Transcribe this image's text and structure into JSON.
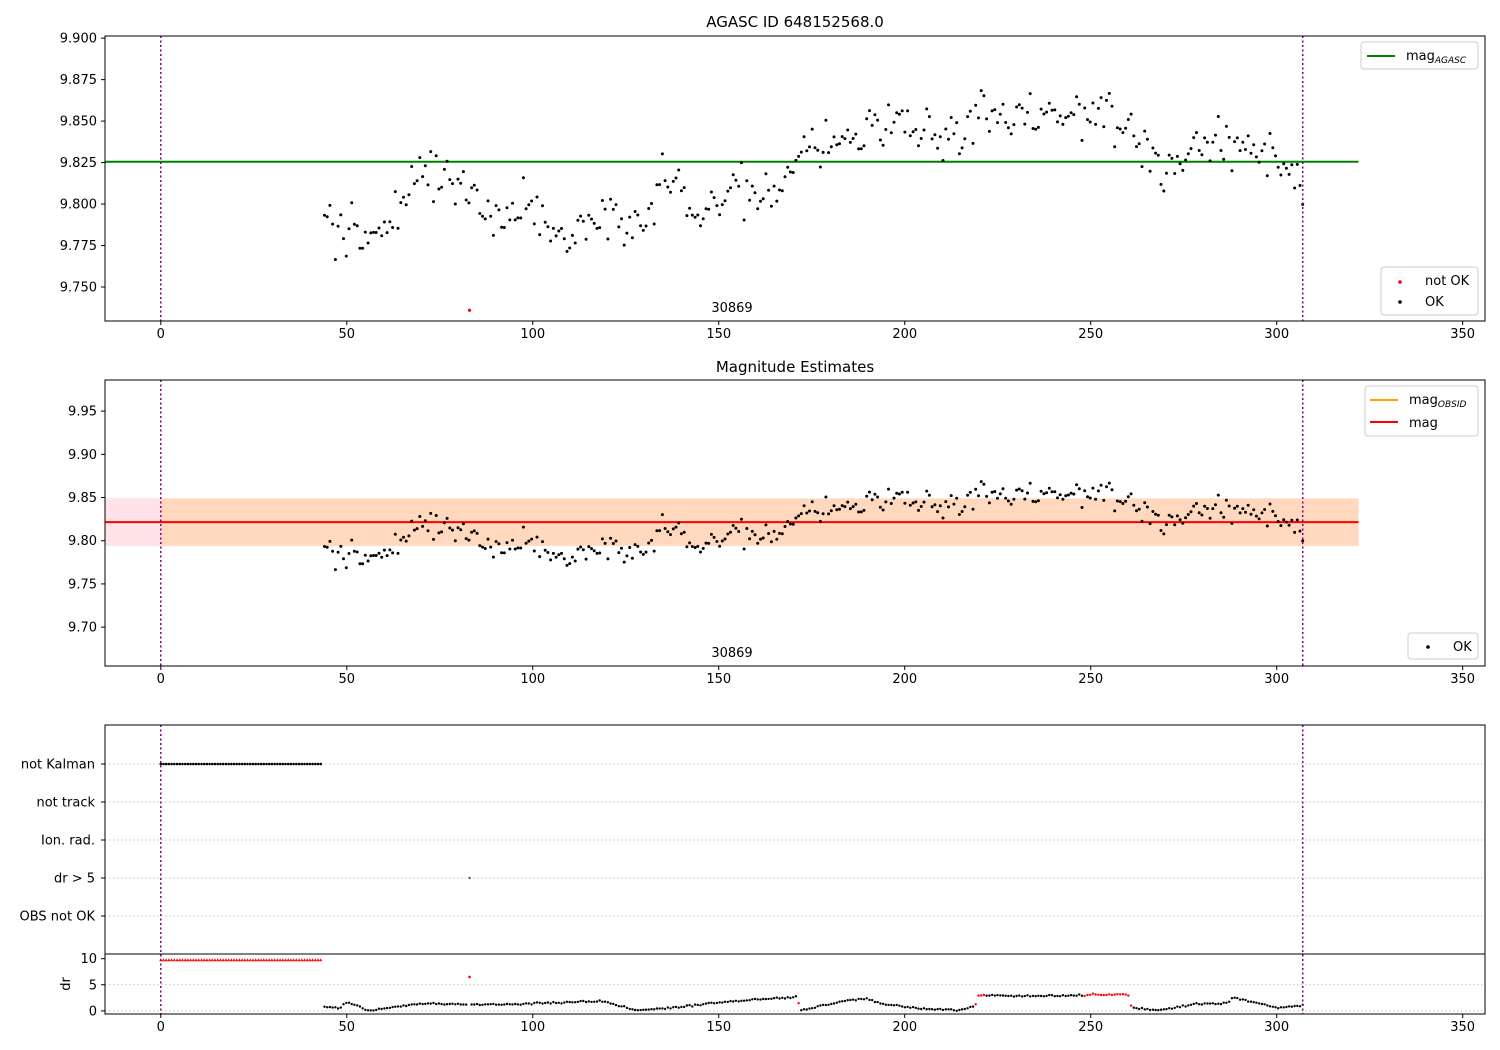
{
  "chart_data": [
    {
      "type": "scatter",
      "title": "AGASC ID 648152568.0",
      "xlabel": "",
      "ylabel": "",
      "xlim": [
        -15,
        356
      ],
      "ylim": [
        9.7295,
        9.9013
      ],
      "x_ticks": [
        0,
        50,
        100,
        150,
        200,
        250,
        300,
        350
      ],
      "y_ticks": [
        9.75,
        9.775,
        9.8,
        9.825,
        9.85,
        9.875,
        9.9
      ],
      "y_tick_labels": [
        "9.750",
        "9.775",
        "9.800",
        "9.825",
        "9.850",
        "9.875",
        "9.900"
      ],
      "vlines": [
        0,
        307
      ],
      "hline": {
        "value": 9.8255,
        "x_range": [
          -15,
          322
        ],
        "label_main": "mag",
        "label_sub": "AGASC",
        "color": "#008000"
      },
      "series_ok": {
        "name": "OK",
        "color": "#000000",
        "x_start": 44,
        "x_end": 307,
        "count": 360
      },
      "series_not_ok": {
        "name": "not OK",
        "color": "#ff0000",
        "points": [
          [
            83,
            9.736
          ]
        ]
      },
      "obsid_label": {
        "text": "30869",
        "x": 152
      },
      "legend_top": "upper right",
      "legend_bottom": "lower right",
      "grid": false
    },
    {
      "type": "scatter",
      "title": "Magnitude Estimates",
      "xlim": [
        -15,
        356
      ],
      "ylim": [
        9.655,
        9.986
      ],
      "x_ticks": [
        0,
        50,
        100,
        150,
        200,
        250,
        300,
        350
      ],
      "y_ticks": [
        9.7,
        9.75,
        9.8,
        9.85,
        9.9,
        9.95
      ],
      "y_tick_labels": [
        "9.70",
        "9.75",
        "9.80",
        "9.85",
        "9.90",
        "9.95"
      ],
      "vlines": [
        0,
        307
      ],
      "mag_line": {
        "value": 9.8215,
        "x_range": [
          -15,
          322
        ],
        "label": "mag",
        "color": "#ff0000"
      },
      "mag_band": {
        "low": 9.794,
        "high": 9.849,
        "x_range": [
          -15,
          322
        ],
        "color": "#ffc0cb"
      },
      "obsid_band": {
        "low": 9.794,
        "high": 9.849,
        "x_range": [
          0,
          322
        ],
        "color": "#ffa500"
      },
      "obsid_legend": {
        "label_main": "mag",
        "label_sub": "OBSID",
        "color": "#ffa500"
      },
      "series_ok": {
        "name": "OK",
        "color": "#000000"
      },
      "obsid_label": {
        "text": "30869",
        "x": 152
      },
      "legend_top": "upper right",
      "legend_bottom": "lower right",
      "grid": false
    },
    {
      "type": "scatter",
      "title": "",
      "xlim": [
        -15,
        356
      ],
      "x_ticks": [
        0,
        50,
        100,
        150,
        200,
        250,
        300,
        350
      ],
      "vlines": [
        0,
        307
      ],
      "flag_rows": [
        "not Kalman",
        "not track",
        "Ion. rad.",
        "dr > 5",
        "OBS not OK"
      ],
      "flag_points": {
        "not Kalman": {
          "x_range": [
            0,
            43
          ],
          "count": 60
        },
        "dr > 5": {
          "x": [
            83
          ]
        }
      },
      "dr_panel": {
        "ylabel": "dr",
        "ylim": [
          -0.6,
          10.9
        ],
        "y_ticks": [
          0,
          5,
          10
        ],
        "y_tick_labels": [
          "0",
          "5",
          "10"
        ],
        "saturated_red": {
          "x_range": [
            0,
            43
          ],
          "value": 9.8
        },
        "isolated_red": {
          "x": 83,
          "value": 6.5
        }
      },
      "grid": true
    }
  ]
}
